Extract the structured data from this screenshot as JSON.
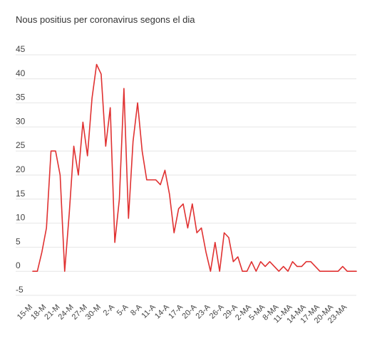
{
  "chart_data": {
    "type": "line",
    "title": "Nous positius per coronavirus segons el dia",
    "xlabel": "",
    "ylabel": "",
    "ylim": [
      -5,
      45
    ],
    "yticks": [
      -5,
      0,
      5,
      10,
      15,
      20,
      25,
      30,
      35,
      40,
      45
    ],
    "xtick_labels": [
      "15-M",
      "18-M",
      "21-M",
      "24-M",
      "27-M",
      "30-M",
      "2-A",
      "5-A",
      "8-A",
      "11-A",
      "14-A",
      "17-A",
      "20-A",
      "23-A",
      "26-A",
      "29-A",
      "2-MA",
      "5-MA",
      "8-MA",
      "11-MA",
      "14-MA",
      "17-MA",
      "20-MA",
      "23-MA"
    ],
    "grid": true,
    "series": [
      {
        "color": "#e03131",
        "values": [
          0,
          0,
          4,
          9,
          25,
          25,
          20,
          0,
          12,
          26,
          20,
          31,
          24,
          36,
          43,
          41,
          26,
          34,
          6,
          15,
          38,
          11,
          27,
          35,
          25,
          19,
          19,
          19,
          18,
          21,
          16,
          8,
          13,
          14,
          9,
          14,
          8,
          9,
          4,
          0,
          6,
          0,
          8,
          7,
          2,
          3,
          0,
          0,
          2,
          0,
          2,
          1,
          2,
          1,
          0,
          1,
          0,
          2,
          1,
          1,
          2,
          2,
          1,
          0,
          0,
          0,
          0,
          0,
          1,
          0,
          0,
          0
        ]
      }
    ]
  }
}
